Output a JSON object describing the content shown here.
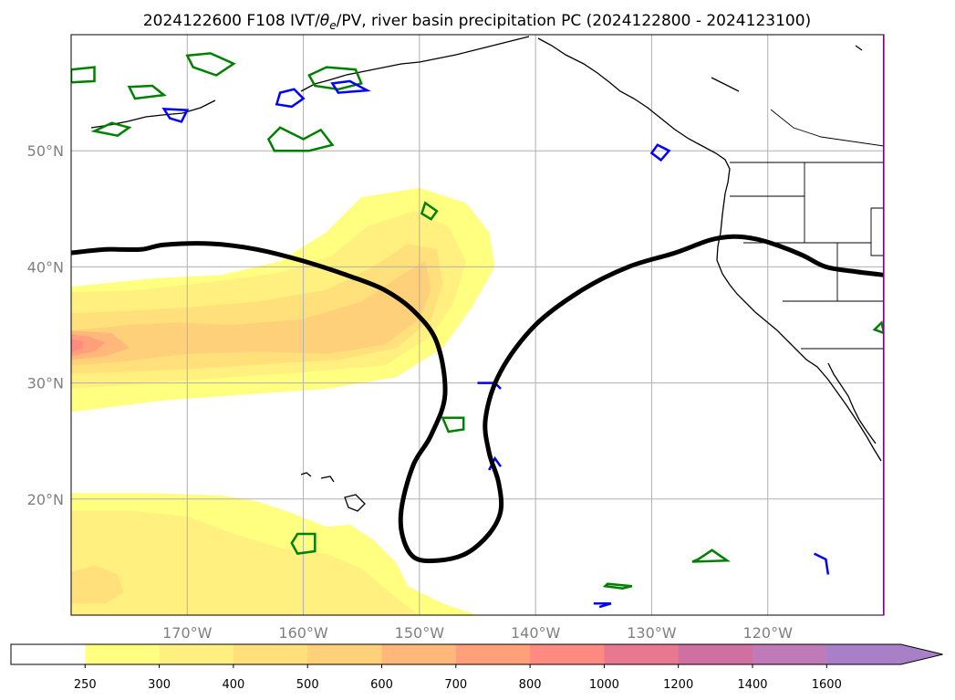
{
  "chart_data": {
    "type": "contour",
    "title": "2024122600 F108 IVT/θe/PV, river basin precipitation PC (2024122800 - 2024123100)",
    "title_prefix": "2024122600 F108 IVT/",
    "title_theta": "θ",
    "title_sub": "e",
    "title_suffix": "/PV, river basin precipitation PC (2024122800 - 2024123100)",
    "extent": {
      "lon": [
        -180,
        -110
      ],
      "lat": [
        10,
        60
      ]
    },
    "grid": true,
    "x_ticks": [
      {
        "value": -170,
        "label": "170°W"
      },
      {
        "value": -160,
        "label": "160°W"
      },
      {
        "value": -150,
        "label": "150°W"
      },
      {
        "value": -140,
        "label": "140°W"
      },
      {
        "value": -130,
        "label": "130°W"
      },
      {
        "value": -120,
        "label": "120°W"
      }
    ],
    "y_ticks": [
      {
        "value": 20,
        "label": "20°N"
      },
      {
        "value": 30,
        "label": "30°N"
      },
      {
        "value": 40,
        "label": "40°N"
      },
      {
        "value": 50,
        "label": "50°N"
      }
    ],
    "colorbar": {
      "orientation": "horizontal",
      "extend": "max",
      "levels": [
        250,
        300,
        400,
        500,
        600,
        700,
        800,
        1000,
        1200,
        1400,
        1600
      ],
      "level_labels": [
        "250",
        "300",
        "400",
        "500",
        "600",
        "700",
        "800",
        "1000",
        "1200",
        "1400",
        "1600"
      ],
      "colors": [
        "#ffffff",
        "#ffff80",
        "#fff07f",
        "#ffe07a",
        "#ffd07a",
        "#ffb87a",
        "#ffa07a",
        "#ff8a80",
        "#e87890",
        "#d070a0",
        "#c07ab8",
        "#a880c8"
      ]
    },
    "ivt_filled": [
      {
        "level": 250,
        "color": "#ffff80",
        "points": [
          [
            -180,
            27.5
          ],
          [
            -172,
            28.5
          ],
          [
            -165,
            29
          ],
          [
            -158,
            29.5
          ],
          [
            -152,
            30.5
          ],
          [
            -148,
            33
          ],
          [
            -145.5,
            36.5
          ],
          [
            -143.5,
            40
          ],
          [
            -144,
            43
          ],
          [
            -146,
            45.5
          ],
          [
            -150,
            46.8
          ],
          [
            -155,
            46
          ],
          [
            -158,
            43
          ],
          [
            -162,
            40.5
          ],
          [
            -167,
            39.3
          ],
          [
            -173,
            39
          ],
          [
            -178,
            38.5
          ],
          [
            -180,
            38.3
          ]
        ]
      },
      {
        "level": 300,
        "color": "#fff07f",
        "points": [
          [
            -180,
            29.5
          ],
          [
            -173,
            30
          ],
          [
            -166,
            30.5
          ],
          [
            -159,
            31
          ],
          [
            -153,
            31.5
          ],
          [
            -149,
            34
          ],
          [
            -147,
            37
          ],
          [
            -146,
            40.5
          ],
          [
            -147.5,
            43.5
          ],
          [
            -150.5,
            44.8
          ],
          [
            -154.5,
            43.5
          ],
          [
            -157.5,
            41
          ],
          [
            -162,
            39.5
          ],
          [
            -168,
            38.7
          ],
          [
            -174,
            38
          ],
          [
            -180,
            37.8
          ]
        ]
      },
      {
        "level": 400,
        "color": "#ffe07a",
        "points": [
          [
            -180,
            30.8
          ],
          [
            -174,
            31
          ],
          [
            -168,
            31.3
          ],
          [
            -162,
            31.7
          ],
          [
            -157,
            32
          ],
          [
            -152,
            33
          ],
          [
            -149,
            35.5
          ],
          [
            -148,
            38.5
          ],
          [
            -148.5,
            41.5
          ],
          [
            -151,
            42
          ],
          [
            -154,
            40
          ],
          [
            -158,
            38
          ],
          [
            -164,
            37
          ],
          [
            -170,
            36.5
          ],
          [
            -175,
            36.2
          ],
          [
            -180,
            36
          ]
        ]
      },
      {
        "level": 500,
        "color": "#ffd07a",
        "points": [
          [
            -180,
            31.5
          ],
          [
            -176,
            31.8
          ],
          [
            -170,
            32.5
          ],
          [
            -164,
            32.7
          ],
          [
            -158,
            32.5
          ],
          [
            -153,
            33.3
          ],
          [
            -150,
            35.5
          ],
          [
            -149,
            38
          ],
          [
            -149.5,
            40.5
          ],
          [
            -152,
            39
          ],
          [
            -155,
            37
          ],
          [
            -160,
            35.5
          ],
          [
            -166,
            35
          ],
          [
            -171,
            35.2
          ],
          [
            -175,
            35
          ],
          [
            -180,
            34.5
          ]
        ]
      },
      {
        "level": 600,
        "color": "#ffb87a",
        "points": [
          [
            -180,
            32
          ],
          [
            -177,
            32.3
          ],
          [
            -175,
            33
          ],
          [
            -176.5,
            34.3
          ],
          [
            -180,
            34.5
          ]
        ]
      },
      {
        "level": 700,
        "color": "#ffa07a",
        "points": [
          [
            -180,
            32.3
          ],
          [
            -178,
            32.7
          ],
          [
            -177,
            33.5
          ],
          [
            -178.5,
            34
          ],
          [
            -180,
            34.2
          ]
        ]
      },
      {
        "level": 800,
        "color": "#ff8a80",
        "points": [
          [
            -180,
            32.6
          ],
          [
            -179,
            33
          ],
          [
            -179,
            33.6
          ],
          [
            -180,
            33.8
          ]
        ]
      },
      {
        "level": 250,
        "color": "#ffff80",
        "points": [
          [
            -180,
            10
          ],
          [
            -180,
            20.5
          ],
          [
            -173,
            20.5
          ],
          [
            -167,
            20.3
          ],
          [
            -164,
            19.8
          ],
          [
            -161,
            18.8
          ],
          [
            -158,
            17.6
          ],
          [
            -156,
            17.8
          ],
          [
            -154,
            16.5
          ],
          [
            -152,
            14.5
          ],
          [
            -151,
            12.5
          ],
          [
            -148,
            11
          ],
          [
            -145,
            10
          ]
        ]
      },
      {
        "level": 300,
        "color": "#fff07f",
        "points": [
          [
            -180,
            10
          ],
          [
            -180,
            19
          ],
          [
            -175,
            19
          ],
          [
            -170,
            18.5
          ],
          [
            -166,
            17
          ],
          [
            -162,
            15.8
          ],
          [
            -158,
            15.3
          ],
          [
            -155,
            14
          ],
          [
            -152,
            11.5
          ],
          [
            -150,
            10
          ]
        ]
      },
      {
        "level": 400,
        "color": "#ffe07a",
        "points": [
          [
            -180,
            11
          ],
          [
            -180,
            13.7
          ],
          [
            -178,
            14.3
          ],
          [
            -176,
            13.5
          ],
          [
            -175.5,
            12
          ],
          [
            -177,
            11
          ]
        ]
      }
    ],
    "pv_contour": {
      "color": "#000000",
      "points": [
        [
          -180,
          41.2
        ],
        [
          -177,
          41.5
        ],
        [
          -174,
          41.5
        ],
        [
          -172,
          41.9
        ],
        [
          -168,
          42
        ],
        [
          -164,
          41.5
        ],
        [
          -160,
          40.5
        ],
        [
          -156,
          39.2
        ],
        [
          -153,
          38
        ],
        [
          -150.5,
          36.2
        ],
        [
          -148.5,
          33.5
        ],
        [
          -147.8,
          29
        ],
        [
          -149,
          25.5
        ],
        [
          -150.5,
          23
        ],
        [
          -151.5,
          19.5
        ],
        [
          -151.5,
          17
        ],
        [
          -150.5,
          15
        ],
        [
          -148.5,
          14.7
        ],
        [
          -146,
          15.3
        ],
        [
          -144,
          17
        ],
        [
          -143,
          19
        ],
        [
          -143.2,
          21.5
        ],
        [
          -144,
          24
        ],
        [
          -144.3,
          27
        ],
        [
          -143,
          31
        ],
        [
          -140,
          35
        ],
        [
          -136,
          38
        ],
        [
          -132,
          40
        ],
        [
          -128,
          41.2
        ],
        [
          -125,
          42.3
        ],
        [
          -123,
          42.6
        ],
        [
          -121,
          42.4
        ],
        [
          -119,
          41.8
        ],
        [
          -117,
          41
        ],
        [
          -115,
          40
        ],
        [
          -112.5,
          39.6
        ],
        [
          -110,
          39.3
        ]
      ]
    },
    "theta_e_contours_green": [
      [
        [
          -180,
          57
        ],
        [
          -178,
          57.2
        ],
        [
          -178,
          56
        ],
        [
          -180,
          55.9
        ]
      ],
      [
        [
          -178,
          51.7
        ],
        [
          -176.5,
          52.4
        ],
        [
          -175,
          52
        ],
        [
          -176,
          51.3
        ]
      ],
      [
        [
          -175,
          55.5
        ],
        [
          -173,
          55.6
        ],
        [
          -172,
          54.8
        ],
        [
          -174.5,
          54.5
        ]
      ],
      [
        [
          -170,
          58.2
        ],
        [
          -168,
          58.4
        ],
        [
          -166,
          57.5
        ],
        [
          -167.5,
          56.5
        ],
        [
          -169.5,
          57.2
        ]
      ],
      [
        [
          -163,
          51
        ],
        [
          -162,
          52
        ],
        [
          -160,
          51
        ],
        [
          -158.5,
          51.8
        ],
        [
          -157.5,
          50.5
        ],
        [
          -159.5,
          50
        ],
        [
          -162.5,
          50
        ]
      ],
      [
        [
          -159.5,
          56.5
        ],
        [
          -158,
          57.2
        ],
        [
          -155.5,
          57
        ],
        [
          -155,
          55.8
        ],
        [
          -157,
          55.3
        ],
        [
          -159,
          55.6
        ]
      ],
      [
        [
          -149.5,
          45.5
        ],
        [
          -148.5,
          44.8
        ],
        [
          -149,
          44.1
        ],
        [
          -149.8,
          44.6
        ]
      ],
      [
        [
          -148,
          27
        ],
        [
          -146.2,
          27
        ],
        [
          -146.2,
          26
        ],
        [
          -147.5,
          25.8
        ]
      ],
      [
        [
          -160.5,
          17
        ],
        [
          -159,
          17
        ],
        [
          -159,
          15.5
        ],
        [
          -160.5,
          15.3
        ],
        [
          -161,
          16.2
        ]
      ],
      [
        [
          -126,
          14.8
        ],
        [
          -124.8,
          15.6
        ],
        [
          -123.5,
          14.7
        ],
        [
          -126.5,
          14.6
        ]
      ],
      [
        [
          -134,
          12.5
        ],
        [
          -132.5,
          12.3
        ],
        [
          -131.7,
          12.5
        ],
        [
          -133.8,
          12.7
        ]
      ],
      [
        [
          -110.2,
          35.2
        ],
        [
          -110,
          34.3
        ],
        [
          -110.8,
          34.6
        ]
      ]
    ],
    "theta_e_contours_blue": [
      [
        [
          -162.3,
          54
        ],
        [
          -162,
          55
        ],
        [
          -160.8,
          55.3
        ],
        [
          -160,
          54.5
        ],
        [
          -161,
          53.8
        ]
      ],
      [
        [
          -157.5,
          55.8
        ],
        [
          -156,
          56
        ],
        [
          -154.5,
          55.2
        ],
        [
          -157,
          55
        ]
      ],
      [
        [
          -171.5,
          52.8
        ],
        [
          -170.5,
          52.5
        ],
        [
          -170,
          53.5
        ],
        [
          -172,
          53.6
        ]
      ],
      [
        [
          -129.5,
          50.5
        ],
        [
          -128.5,
          50
        ],
        [
          -129.2,
          49.2
        ],
        [
          -130,
          49.8
        ]
      ],
      [
        [
          -145,
          30
        ],
        [
          -143.5,
          30
        ],
        [
          -143,
          29.5
        ]
      ],
      [
        [
          -144,
          22.5
        ],
        [
          -143.5,
          23.5
        ],
        [
          -143,
          22.8
        ]
      ],
      [
        [
          -116,
          15.3
        ],
        [
          -115,
          14.8
        ],
        [
          -114.8,
          13.5
        ]
      ],
      [
        [
          -135,
          11
        ],
        [
          -133.5,
          11
        ],
        [
          -134.5,
          10.7
        ]
      ]
    ],
    "coastline_note": "North America west coast and Pacific islands drawn as outline"
  }
}
